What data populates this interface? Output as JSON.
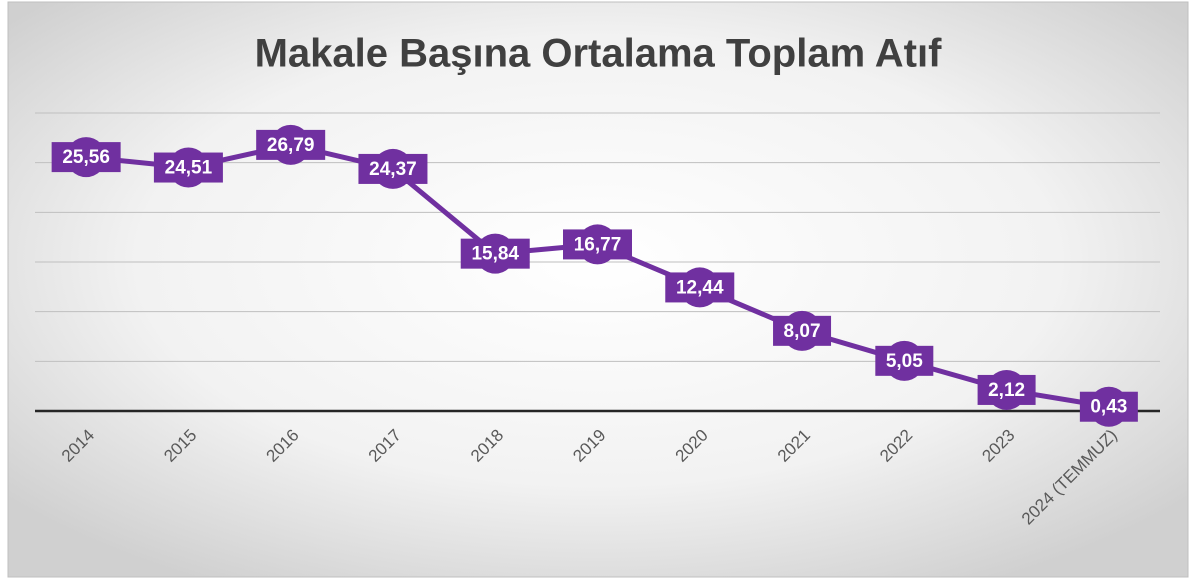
{
  "chart_data": {
    "type": "line",
    "title": "Makale Başına Ortalama Toplam Atıf",
    "categories": [
      "2014",
      "2015",
      "2016",
      "2017",
      "2018",
      "2019",
      "2020",
      "2021",
      "2022",
      "2023",
      "2024 (TEMMUZ)"
    ],
    "series": [
      {
        "name": "Makale Başına Ortalama Toplam Atıf",
        "color": "#7030a0",
        "values": [
          25.56,
          24.51,
          26.79,
          24.37,
          15.84,
          16.77,
          12.44,
          8.07,
          5.05,
          2.12,
          0.43
        ],
        "value_labels": [
          "25,56",
          "24,51",
          "26,79",
          "24,37",
          "15,84",
          "16,77",
          "12,44",
          "8,07",
          "5,05",
          "2,12",
          "0,43"
        ]
      }
    ],
    "ylim": [
      0,
      30
    ],
    "yticks": [
      0,
      5,
      10,
      15,
      20,
      25,
      30
    ],
    "grid": true
  }
}
